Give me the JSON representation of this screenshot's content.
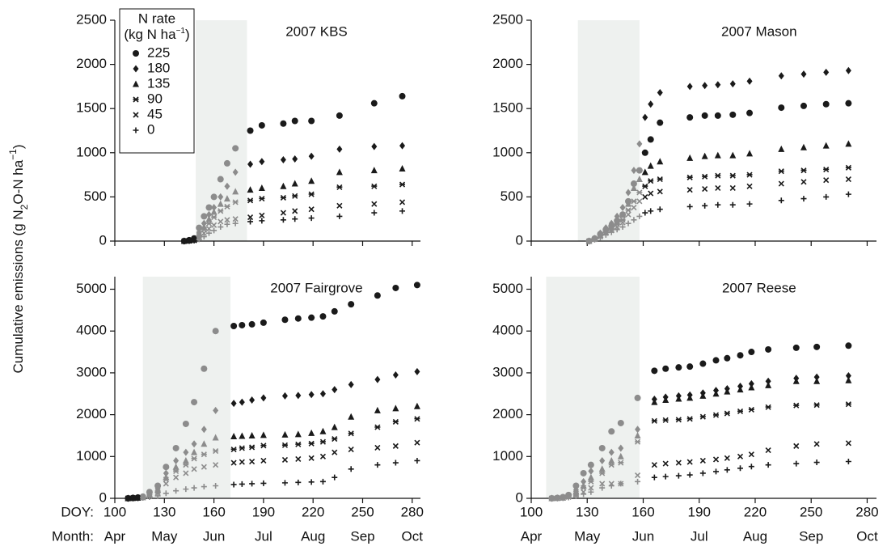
{
  "y_label": [
    "Cumulative emissions (g N",
    "2",
    "O-N ha",
    "−1",
    ")"
  ],
  "chart_data": [
    {
      "type": "scatter",
      "title": "2007 KBS",
      "xtick_labels": false,
      "xlim": [
        100,
        285
      ],
      "xticks": [
        100,
        130,
        160,
        190,
        220,
        250,
        280
      ],
      "ylim": [
        0,
        2500
      ],
      "yticks": [
        0,
        500,
        1000,
        1500,
        2000,
        2500
      ],
      "shade": [
        149,
        180
      ],
      "shade_color": "#eef1ef",
      "shade_point_color": "#8c8c8c",
      "legend": "upper left",
      "legend_title": [
        "N rate",
        "(kg N ha",
        "−1",
        ")"
      ],
      "x": [
        142,
        145,
        148,
        151,
        154,
        157,
        160,
        164,
        168,
        173,
        182,
        189,
        202,
        209,
        219,
        236,
        257,
        274
      ],
      "series": [
        {
          "name": "225",
          "marker": "circle",
          "color": "#1a1a1a",
          "values": [
            0,
            10,
            30,
            150,
            280,
            380,
            500,
            700,
            880,
            1050,
            1250,
            1310,
            1330,
            1360,
            1360,
            1420,
            1560,
            1640
          ]
        },
        {
          "name": "180",
          "marker": "diamond",
          "color": "#1a1a1a",
          "values": [
            0,
            5,
            20,
            100,
            200,
            300,
            380,
            500,
            620,
            780,
            870,
            900,
            920,
            930,
            960,
            1040,
            1070,
            1080
          ]
        },
        {
          "name": "135",
          "marker": "triangle",
          "color": "#1a1a1a",
          "values": [
            0,
            5,
            15,
            80,
            160,
            250,
            330,
            420,
            480,
            560,
            580,
            600,
            620,
            650,
            680,
            780,
            800,
            820
          ]
        },
        {
          "name": "90",
          "marker": "asterisk",
          "color": "#1a1a1a",
          "values": [
            0,
            5,
            10,
            60,
            130,
            200,
            270,
            340,
            390,
            440,
            460,
            480,
            490,
            510,
            530,
            610,
            620,
            640
          ]
        },
        {
          "name": "45",
          "marker": "x",
          "color": "#1a1a1a",
          "values": [
            0,
            3,
            8,
            40,
            90,
            140,
            180,
            220,
            240,
            250,
            270,
            290,
            320,
            340,
            360,
            400,
            420,
            440
          ]
        },
        {
          "name": "0",
          "marker": "plus",
          "color": "#1a1a1a",
          "values": [
            0,
            2,
            5,
            20,
            50,
            90,
            120,
            160,
            190,
            200,
            220,
            230,
            240,
            250,
            260,
            280,
            320,
            340
          ]
        }
      ]
    },
    {
      "type": "scatter",
      "title": "2007 Mason",
      "xtick_labels": false,
      "xlim": [
        100,
        285
      ],
      "xticks": [
        100,
        130,
        160,
        190,
        220,
        250,
        280
      ],
      "ylim": [
        0,
        2500
      ],
      "yticks": [
        0,
        500,
        1000,
        1500,
        2000,
        2500
      ],
      "shade": [
        125,
        158
      ],
      "shade_color": "#eef1ef",
      "shade_point_color": "#8c8c8c",
      "x": [
        131,
        134,
        137,
        140,
        143,
        146,
        149,
        152,
        155,
        158,
        161,
        164,
        169,
        185,
        193,
        200,
        208,
        217,
        234,
        246,
        258,
        270
      ],
      "series": [
        {
          "marker": "circle",
          "color": "#1a1a1a",
          "values": [
            0,
            30,
            80,
            130,
            170,
            230,
            300,
            450,
            650,
            800,
            1000,
            1150,
            1340,
            1400,
            1420,
            1420,
            1430,
            1450,
            1510,
            1530,
            1550,
            1560
          ]
        },
        {
          "marker": "diamond",
          "color": "#1a1a1a",
          "values": [
            0,
            30,
            90,
            150,
            200,
            280,
            380,
            550,
            800,
            1100,
            1400,
            1550,
            1680,
            1750,
            1760,
            1770,
            1780,
            1810,
            1870,
            1890,
            1910,
            1930
          ]
        },
        {
          "marker": "triangle",
          "color": "#1a1a1a",
          "values": [
            0,
            25,
            70,
            120,
            160,
            220,
            300,
            420,
            600,
            700,
            780,
            850,
            900,
            940,
            960,
            970,
            970,
            990,
            1040,
            1060,
            1080,
            1100
          ]
        },
        {
          "marker": "asterisk",
          "color": "#1a1a1a",
          "values": [
            0,
            20,
            60,
            100,
            140,
            190,
            240,
            350,
            450,
            550,
            620,
            680,
            700,
            720,
            730,
            740,
            740,
            750,
            790,
            800,
            810,
            830
          ]
        },
        {
          "marker": "x",
          "color": "#1a1a1a",
          "values": [
            0,
            20,
            50,
            90,
            120,
            160,
            210,
            300,
            380,
            450,
            500,
            540,
            560,
            580,
            590,
            600,
            600,
            620,
            650,
            670,
            690,
            700
          ]
        },
        {
          "marker": "plus",
          "color": "#1a1a1a",
          "values": [
            0,
            15,
            40,
            70,
            100,
            130,
            160,
            200,
            240,
            280,
            320,
            340,
            360,
            390,
            400,
            410,
            410,
            420,
            460,
            480,
            500,
            530
          ]
        }
      ]
    },
    {
      "type": "scatter",
      "title": "2007 Fairgrove",
      "xtick_labels": true,
      "xtick_prefix": "DOY:",
      "month_prefix": "Month:",
      "months": [
        "Apr",
        "May",
        "Jun",
        "Jul",
        "Aug",
        "Sep",
        "Oct"
      ],
      "xlim": [
        100,
        285
      ],
      "xticks": [
        100,
        130,
        160,
        190,
        220,
        250,
        280
      ],
      "ylim": [
        0,
        5300
      ],
      "yticks": [
        0,
        1000,
        2000,
        3000,
        4000,
        5000
      ],
      "shade": [
        117,
        170
      ],
      "shade_color": "#eef1ef",
      "shade_point_color": "#8c8c8c",
      "x": [
        108,
        111,
        114,
        117,
        121,
        126,
        131,
        137,
        143,
        148,
        154,
        161,
        172,
        177,
        183,
        190,
        203,
        211,
        219,
        226,
        233,
        243,
        259,
        270,
        283
      ],
      "series": [
        {
          "marker": "circle",
          "color": "#1a1a1a",
          "values": [
            0,
            10,
            20,
            40,
            150,
            300,
            750,
            1200,
            1780,
            2300,
            3100,
            4000,
            4120,
            4140,
            4160,
            4200,
            4270,
            4300,
            4320,
            4350,
            4470,
            4640,
            4850,
            5030,
            5100
          ]
        },
        {
          "marker": "diamond",
          "color": "#1a1a1a",
          "values": [
            0,
            8,
            15,
            30,
            120,
            250,
            600,
            900,
            1100,
            1300,
            1650,
            2100,
            2270,
            2300,
            2350,
            2400,
            2450,
            2460,
            2480,
            2500,
            2600,
            2720,
            2840,
            2950,
            3030
          ]
        },
        {
          "marker": "triangle",
          "color": "#1a1a1a",
          "values": [
            0,
            6,
            12,
            25,
            100,
            200,
            500,
            750,
            900,
            1100,
            1300,
            1450,
            1480,
            1490,
            1500,
            1510,
            1520,
            1530,
            1560,
            1600,
            1700,
            1950,
            2100,
            2150,
            2200
          ]
        },
        {
          "marker": "asterisk",
          "color": "#1a1a1a",
          "values": [
            0,
            5,
            10,
            20,
            80,
            170,
            450,
            650,
            800,
            950,
            1050,
            1130,
            1170,
            1200,
            1220,
            1260,
            1270,
            1290,
            1310,
            1350,
            1420,
            1550,
            1700,
            1830,
            1900
          ]
        },
        {
          "marker": "x",
          "color": "#1a1a1a",
          "values": [
            0,
            4,
            8,
            15,
            60,
            130,
            350,
            500,
            600,
            700,
            750,
            800,
            850,
            870,
            880,
            900,
            920,
            940,
            960,
            1000,
            1100,
            1170,
            1210,
            1250,
            1330
          ]
        },
        {
          "marker": "plus",
          "color": "#1a1a1a",
          "values": [
            0,
            3,
            5,
            10,
            30,
            60,
            120,
            180,
            220,
            250,
            280,
            300,
            330,
            340,
            350,
            360,
            370,
            380,
            390,
            400,
            500,
            700,
            800,
            850,
            900
          ]
        }
      ]
    },
    {
      "type": "scatter",
      "title": "2007 Reese",
      "xtick_labels": true,
      "months": [
        "Apr",
        "May",
        "Jun",
        "Jul",
        "Aug",
        "Sep",
        "Oct"
      ],
      "xlim": [
        100,
        285
      ],
      "xticks": [
        100,
        130,
        160,
        190,
        220,
        250,
        280
      ],
      "ylim": [
        0,
        5300
      ],
      "yticks": [
        0,
        1000,
        2000,
        3000,
        4000,
        5000
      ],
      "shade": [
        108,
        158
      ],
      "shade_color": "#eef1ef",
      "shade_point_color": "#8c8c8c",
      "x": [
        111,
        114,
        117,
        120,
        124,
        128,
        132,
        138,
        143,
        148,
        157,
        166,
        172,
        179,
        185,
        192,
        199,
        205,
        212,
        218,
        227,
        242,
        253,
        270
      ],
      "series": [
        {
          "marker": "circle",
          "color": "#1a1a1a",
          "values": [
            0,
            10,
            30,
            80,
            300,
            600,
            800,
            1200,
            1600,
            1800,
            2400,
            3050,
            3100,
            3130,
            3150,
            3220,
            3300,
            3350,
            3420,
            3500,
            3560,
            3600,
            3620,
            3650
          ]
        },
        {
          "marker": "diamond",
          "color": "#1a1a1a",
          "values": [
            0,
            8,
            20,
            60,
            200,
            400,
            650,
            900,
            1100,
            1200,
            1650,
            2370,
            2420,
            2450,
            2470,
            2520,
            2580,
            2620,
            2680,
            2740,
            2800,
            2870,
            2900,
            2930
          ]
        },
        {
          "marker": "triangle",
          "color": "#1a1a1a",
          "values": [
            0,
            6,
            15,
            50,
            150,
            300,
            500,
            700,
            900,
            1000,
            1500,
            2300,
            2350,
            2380,
            2400,
            2450,
            2500,
            2550,
            2600,
            2650,
            2700,
            2800,
            2800,
            2820
          ]
        },
        {
          "marker": "asterisk",
          "color": "#1a1a1a",
          "values": [
            0,
            5,
            10,
            40,
            120,
            250,
            400,
            600,
            800,
            850,
            1350,
            1850,
            1870,
            1880,
            1900,
            1950,
            1990,
            2030,
            2080,
            2120,
            2180,
            2220,
            2230,
            2250
          ]
        },
        {
          "marker": "x",
          "color": "#1a1a1a",
          "values": [
            0,
            4,
            8,
            30,
            80,
            150,
            250,
            350,
            350,
            350,
            550,
            800,
            830,
            850,
            870,
            900,
            930,
            960,
            1000,
            1050,
            1150,
            1250,
            1300,
            1320
          ]
        },
        {
          "marker": "plus",
          "color": "#1a1a1a",
          "values": [
            0,
            3,
            5,
            20,
            50,
            100,
            150,
            250,
            300,
            350,
            400,
            500,
            520,
            540,
            560,
            600,
            640,
            680,
            720,
            760,
            800,
            830,
            860,
            880
          ]
        }
      ]
    }
  ]
}
